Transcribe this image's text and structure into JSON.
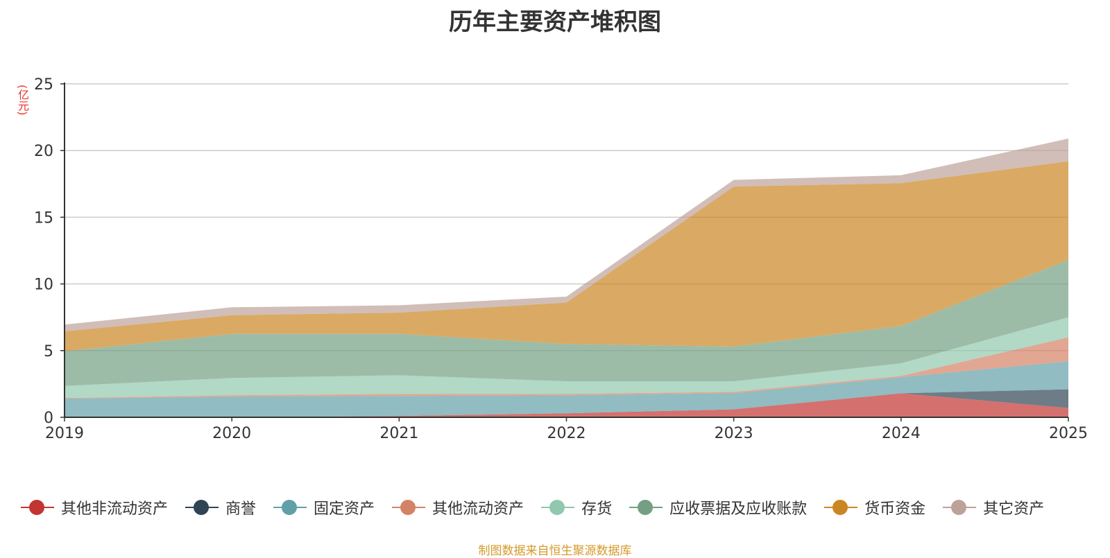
{
  "chart_data": {
    "type": "area",
    "stacked": true,
    "title": "历年主要资产堆积图",
    "unit_label": "(亿元)",
    "x": [
      "2019",
      "2020",
      "2021",
      "2022",
      "2023",
      "2024",
      "2025"
    ],
    "ylim": [
      0,
      25
    ],
    "yticks": [
      "0",
      "5",
      "10",
      "15",
      "20",
      "25"
    ],
    "grid": true,
    "series": [
      {
        "name": "其他非流动资产",
        "color": "#c23531",
        "values": [
          0.0,
          0.0,
          0.1,
          0.3,
          0.6,
          1.8,
          0.7
        ]
      },
      {
        "name": "商誉",
        "color": "#2f4554",
        "values": [
          0.0,
          0.0,
          0.0,
          0.0,
          0.0,
          0.0,
          1.4
        ]
      },
      {
        "name": "固定资产",
        "color": "#61a0a8",
        "values": [
          1.4,
          1.55,
          1.5,
          1.35,
          1.2,
          1.2,
          2.1
        ]
      },
      {
        "name": "其他流动资产",
        "color": "#d48265",
        "values": [
          0.05,
          0.1,
          0.15,
          0.1,
          0.1,
          0.1,
          1.8
        ]
      },
      {
        "name": "存货",
        "color": "#91c7ae",
        "values": [
          0.9,
          1.3,
          1.4,
          0.95,
          0.8,
          0.95,
          1.5
        ]
      },
      {
        "name": "应收票据及应收账款",
        "color": "#749f83",
        "values": [
          2.6,
          3.3,
          3.1,
          2.8,
          2.6,
          2.8,
          4.3
        ]
      },
      {
        "name": "货币资金",
        "color": "#ca8622",
        "values": [
          1.5,
          1.4,
          1.6,
          3.1,
          12.0,
          10.7,
          7.4
        ]
      },
      {
        "name": "其它资产",
        "color": "#bda29a",
        "values": [
          0.5,
          0.6,
          0.55,
          0.45,
          0.5,
          0.6,
          1.7
        ]
      }
    ]
  },
  "source_note": "制图数据来自恒生聚源数据库"
}
